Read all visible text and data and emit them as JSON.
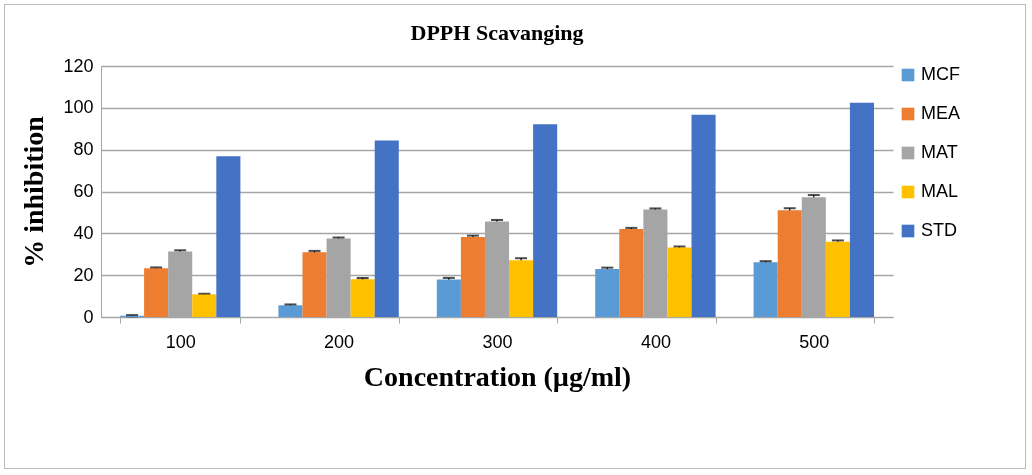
{
  "chart_data": {
    "type": "bar",
    "title": "DPPH Scavanging",
    "xlabel": "Concentration (µg/ml)",
    "ylabel": "% inhibition",
    "categories": [
      "100",
      "200",
      "300",
      "400",
      "500"
    ],
    "series": [
      {
        "name": "MCF",
        "color": "#5b9bd5",
        "values": [
          0.6,
          5.6,
          17.9,
          23,
          26.2
        ],
        "errors": [
          0.3,
          0.4,
          0.8,
          0.6,
          0.5
        ]
      },
      {
        "name": "MEA",
        "color": "#ed7d31",
        "values": [
          23.3,
          31,
          38.3,
          42.1,
          51
        ],
        "errors": [
          0.4,
          0.6,
          0.6,
          0.5,
          1
        ]
      },
      {
        "name": "MAT",
        "color": "#a5a5a5",
        "values": [
          31.3,
          37.5,
          45.6,
          51.4,
          57.3
        ],
        "errors": [
          0.6,
          0.5,
          0.8,
          0.5,
          1
        ]
      },
      {
        "name": "MAL",
        "color": "#ffc000",
        "values": [
          10.8,
          18,
          27.1,
          33.2,
          36
        ],
        "errors": [
          0.3,
          0.6,
          1,
          0.5,
          0.6
        ]
      },
      {
        "name": "STD",
        "color": "#4472c4",
        "values": [
          76.9,
          84.4,
          92.2,
          96.7,
          102.4
        ]
      }
    ],
    "ylim": [
      0,
      120
    ],
    "yticks": [
      0,
      20,
      40,
      60,
      80,
      100,
      120
    ],
    "grid": "y",
    "legend": "right"
  }
}
